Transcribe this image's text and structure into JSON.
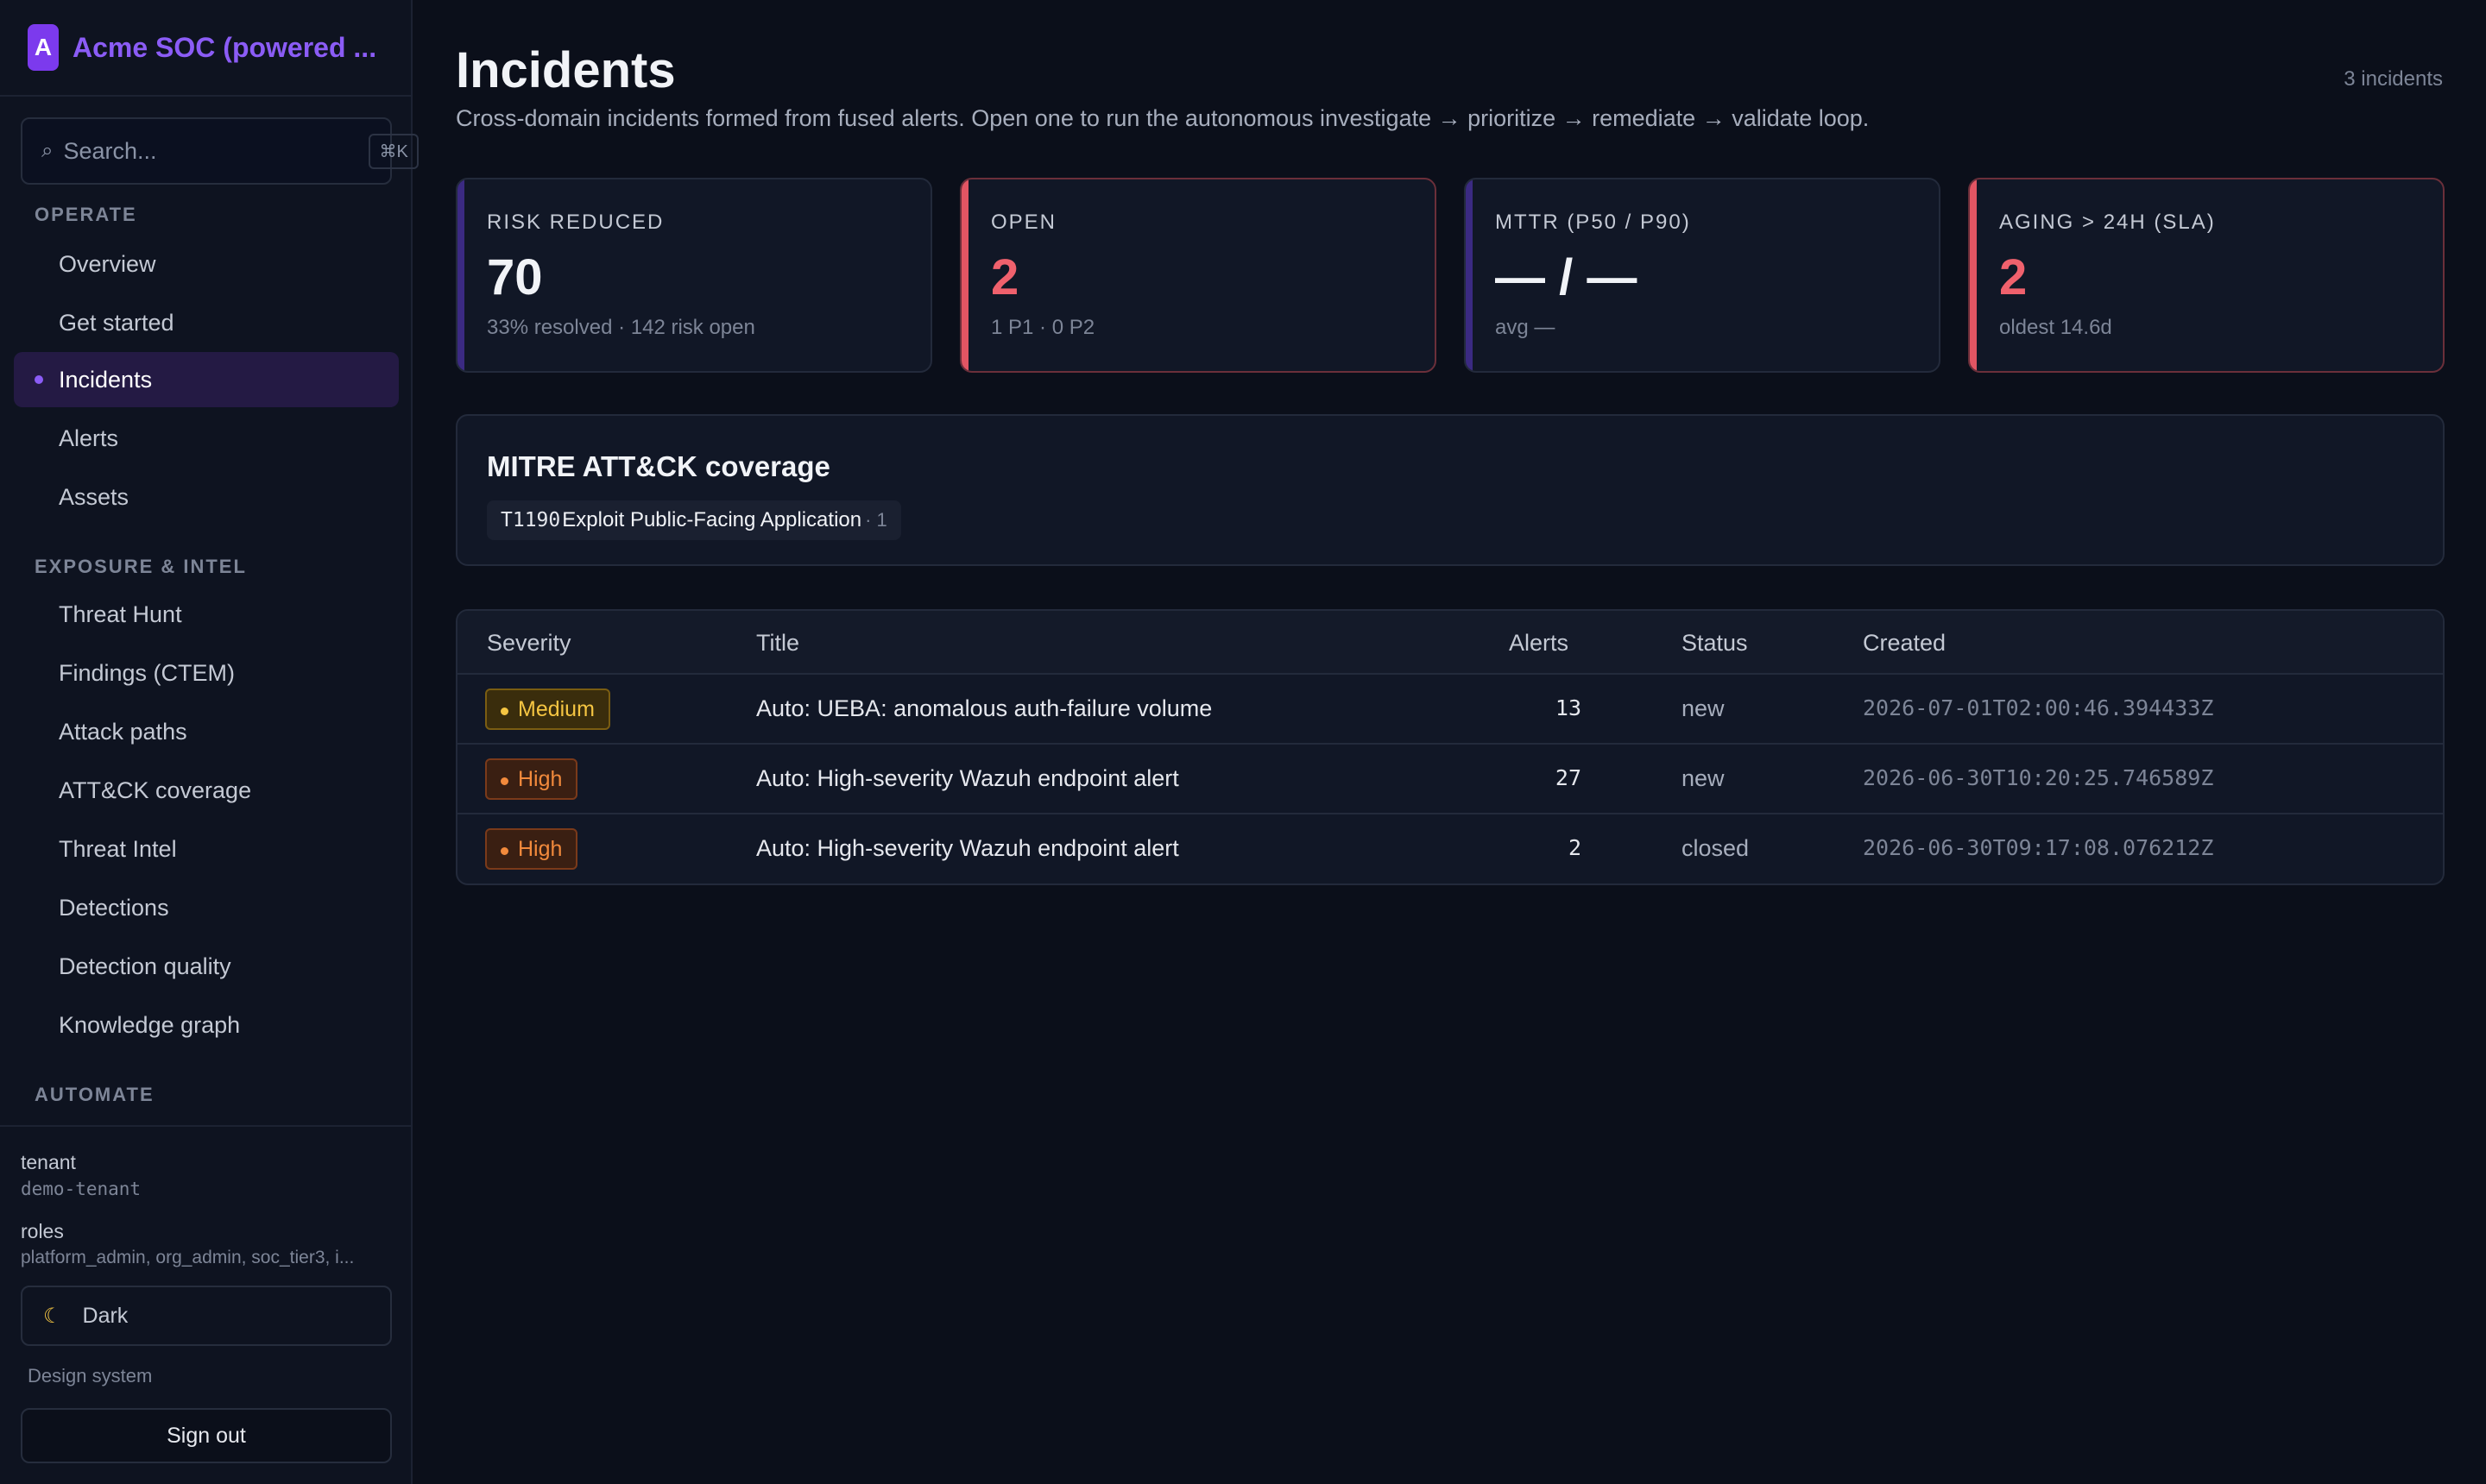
{
  "brand": {
    "logo_letter": "A",
    "name": "Acme SOC (powered ..."
  },
  "search": {
    "placeholder": "Search...",
    "shortcut": "⌘K"
  },
  "sidebar": {
    "sections": [
      {
        "title": "OPERATE",
        "items": [
          "Overview",
          "Get started",
          "Incidents",
          "Alerts",
          "Assets"
        ]
      },
      {
        "title": "EXPOSURE & INTEL",
        "items": [
          "Threat Hunt",
          "Findings (CTEM)",
          "Attack paths",
          "ATT&CK coverage",
          "Threat Intel",
          "Detections",
          "Detection quality",
          "Knowledge graph"
        ]
      },
      {
        "title": "AUTOMATE",
        "items": []
      }
    ],
    "active_item": "Incidents"
  },
  "footer": {
    "tenant_label": "tenant",
    "tenant_value": "demo-tenant",
    "roles_label": "roles",
    "roles_value": "platform_admin, org_admin, soc_tier3, i...",
    "theme_label": "Dark",
    "design_link": "Design system",
    "signout_label": "Sign out"
  },
  "page": {
    "title": "Incidents",
    "count": "3 incidents",
    "subtitle": "Cross-domain incidents formed from fused alerts. Open one to run the autonomous investigate → prioritize → remediate → validate loop."
  },
  "kpis": [
    {
      "label": "RISK REDUCED",
      "value": "70",
      "sub": "33% resolved · 142 risk open",
      "alert": false
    },
    {
      "label": "OPEN",
      "value": "2",
      "sub": "1 P1 · 0 P2",
      "alert": true
    },
    {
      "label": "MTTR (P50 / P90)",
      "value": "— / —",
      "sub": "avg —",
      "alert": false
    },
    {
      "label": "AGING > 24H (SLA)",
      "value": "2",
      "sub": "oldest 14.6d",
      "alert": true
    }
  ],
  "mitre": {
    "title": "MITRE ATT&CK coverage",
    "chip": {
      "id": "T1190",
      "name": "Exploit Public-Facing Application",
      "count": "· 1"
    }
  },
  "table": {
    "headers": {
      "severity": "Severity",
      "title": "Title",
      "alerts": "Alerts",
      "status": "Status",
      "created": "Created"
    },
    "rows": [
      {
        "severity": "Medium",
        "title": "Auto: UEBA: anomalous auth-failure volume",
        "alerts": "13",
        "status": "new",
        "created": "2026-07-01T02:00:46.394433Z"
      },
      {
        "severity": "High",
        "title": "Auto: High-severity Wazuh endpoint alert",
        "alerts": "27",
        "status": "new",
        "created": "2026-06-30T10:20:25.746589Z"
      },
      {
        "severity": "High",
        "title": "Auto: High-severity Wazuh endpoint alert",
        "alerts": "2",
        "status": "closed",
        "created": "2026-06-30T09:17:08.076212Z"
      }
    ]
  },
  "colors": {
    "accent": "#8b5cf6",
    "danger": "#f0616d",
    "medium": "#f5c542",
    "high": "#f28a3c"
  }
}
